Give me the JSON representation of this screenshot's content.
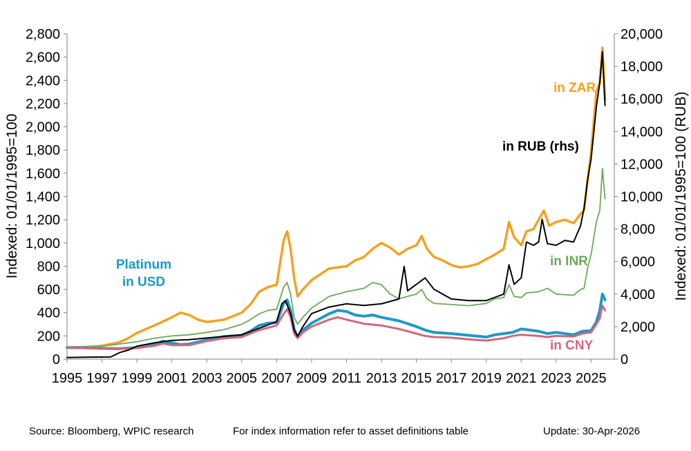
{
  "footer": {
    "source": "Source: Bloomberg, WPIC research",
    "note": "For index information refer to asset definitions table",
    "update": "Update: 30-Apr-2026"
  },
  "chart_data": {
    "type": "line",
    "ylabel": "Indexed:  01/01/1995=100",
    "y2label": "Indexed:  01/01/1995=100 (RUB)",
    "ylim": [
      0,
      2800
    ],
    "y2lim": [
      0,
      20000
    ],
    "yticks": [
      0,
      200,
      400,
      600,
      800,
      1000,
      1200,
      1400,
      1600,
      1800,
      2000,
      2200,
      2400,
      2600,
      2800
    ],
    "y2ticks": [
      0,
      2000,
      4000,
      6000,
      8000,
      10000,
      12000,
      14000,
      16000,
      18000,
      20000
    ],
    "xlim": [
      1995,
      2026.33
    ],
    "xticks": [
      "1995",
      "1997",
      "1999",
      "2001",
      "2003",
      "2005",
      "2007",
      "2009",
      "2011",
      "2013",
      "2015",
      "2017",
      "2019",
      "2021",
      "2023",
      "2025"
    ],
    "grid": false,
    "series": [
      {
        "name": "in ZAR",
        "axis": "left",
        "color": "#F79F1E",
        "points": [
          [
            1995,
            100
          ],
          [
            1996,
            105
          ],
          [
            1997,
            115
          ],
          [
            1998,
            145
          ],
          [
            1998.5,
            180
          ],
          [
            1999,
            225
          ],
          [
            2000,
            290
          ],
          [
            2001,
            360
          ],
          [
            2001.5,
            400
          ],
          [
            2002,
            380
          ],
          [
            2002.5,
            340
          ],
          [
            2003,
            320
          ],
          [
            2004,
            340
          ],
          [
            2005,
            400
          ],
          [
            2005.5,
            470
          ],
          [
            2006,
            580
          ],
          [
            2006.5,
            620
          ],
          [
            2007,
            640
          ],
          [
            2007.4,
            1020
          ],
          [
            2007.6,
            1100
          ],
          [
            2007.8,
            950
          ],
          [
            2008,
            700
          ],
          [
            2008.2,
            540
          ],
          [
            2008.5,
            600
          ],
          [
            2009,
            680
          ],
          [
            2010,
            780
          ],
          [
            2011,
            800
          ],
          [
            2011.5,
            850
          ],
          [
            2012,
            880
          ],
          [
            2012.5,
            950
          ],
          [
            2013,
            1000
          ],
          [
            2013.5,
            960
          ],
          [
            2014,
            900
          ],
          [
            2014.5,
            950
          ],
          [
            2015,
            980
          ],
          [
            2015.3,
            1060
          ],
          [
            2015.6,
            950
          ],
          [
            2016,
            880
          ],
          [
            2016.5,
            850
          ],
          [
            2017,
            810
          ],
          [
            2017.5,
            790
          ],
          [
            2018,
            800
          ],
          [
            2018.5,
            820
          ],
          [
            2019,
            860
          ],
          [
            2019.5,
            900
          ],
          [
            2020,
            950
          ],
          [
            2020.3,
            1180
          ],
          [
            2020.6,
            1050
          ],
          [
            2021,
            980
          ],
          [
            2021.3,
            1100
          ],
          [
            2021.7,
            1120
          ],
          [
            2022,
            1200
          ],
          [
            2022.3,
            1280
          ],
          [
            2022.6,
            1150
          ],
          [
            2023,
            1180
          ],
          [
            2023.5,
            1200
          ],
          [
            2024,
            1170
          ],
          [
            2024.4,
            1250
          ],
          [
            2024.6,
            1280
          ],
          [
            2024.8,
            1540
          ],
          [
            2025,
            1780
          ],
          [
            2025.3,
            2300
          ],
          [
            2025.5,
            2380
          ],
          [
            2025.65,
            2680
          ],
          [
            2025.8,
            2230
          ]
        ]
      },
      {
        "name": "in INR",
        "axis": "left",
        "color": "#6AAA57",
        "points": [
          [
            1995,
            95
          ],
          [
            1996,
            95
          ],
          [
            1997,
            110
          ],
          [
            1998,
            130
          ],
          [
            1999,
            150
          ],
          [
            2000,
            180
          ],
          [
            2001,
            200
          ],
          [
            2002,
            210
          ],
          [
            2003,
            230
          ],
          [
            2004,
            255
          ],
          [
            2005,
            300
          ],
          [
            2005.5,
            340
          ],
          [
            2006,
            390
          ],
          [
            2006.5,
            420
          ],
          [
            2007,
            430
          ],
          [
            2007.4,
            620
          ],
          [
            2007.6,
            660
          ],
          [
            2007.8,
            560
          ],
          [
            2008,
            360
          ],
          [
            2008.2,
            300
          ],
          [
            2008.5,
            360
          ],
          [
            2009,
            440
          ],
          [
            2010,
            540
          ],
          [
            2011,
            580
          ],
          [
            2012,
            610
          ],
          [
            2012.5,
            660
          ],
          [
            2013,
            640
          ],
          [
            2013.5,
            560
          ],
          [
            2014,
            520
          ],
          [
            2015,
            560
          ],
          [
            2015.3,
            600
          ],
          [
            2015.6,
            520
          ],
          [
            2016,
            480
          ],
          [
            2017,
            470
          ],
          [
            2018,
            460
          ],
          [
            2019,
            480
          ],
          [
            2019.5,
            520
          ],
          [
            2020,
            530
          ],
          [
            2020.3,
            640
          ],
          [
            2020.6,
            540
          ],
          [
            2021,
            530
          ],
          [
            2021.3,
            570
          ],
          [
            2022,
            580
          ],
          [
            2022.5,
            610
          ],
          [
            2023,
            560
          ],
          [
            2024,
            550
          ],
          [
            2024.4,
            600
          ],
          [
            2024.6,
            610
          ],
          [
            2024.8,
            780
          ],
          [
            2025,
            900
          ],
          [
            2025.3,
            1180
          ],
          [
            2025.5,
            1280
          ],
          [
            2025.65,
            1640
          ],
          [
            2025.8,
            1380
          ]
        ]
      },
      {
        "name": "Platinum in USD",
        "axis": "left",
        "color": "#1B9AC6",
        "points": [
          [
            1995,
            100
          ],
          [
            1996,
            98
          ],
          [
            1997,
            92
          ],
          [
            1998,
            90
          ],
          [
            1999,
            100
          ],
          [
            2000,
            125
          ],
          [
            2000.5,
            155
          ],
          [
            2001,
            140
          ],
          [
            2001.5,
            125
          ],
          [
            2002,
            130
          ],
          [
            2003,
            165
          ],
          [
            2004,
            195
          ],
          [
            2005,
            205
          ],
          [
            2005.5,
            240
          ],
          [
            2006,
            290
          ],
          [
            2006.5,
            310
          ],
          [
            2007,
            315
          ],
          [
            2007.4,
            480
          ],
          [
            2007.6,
            510
          ],
          [
            2007.8,
            420
          ],
          [
            2008,
            260
          ],
          [
            2008.2,
            190
          ],
          [
            2008.5,
            250
          ],
          [
            2009,
            310
          ],
          [
            2010,
            390
          ],
          [
            2010.5,
            420
          ],
          [
            2011,
            410
          ],
          [
            2011.5,
            380
          ],
          [
            2012,
            370
          ],
          [
            2012.5,
            380
          ],
          [
            2013,
            360
          ],
          [
            2014,
            330
          ],
          [
            2015,
            280
          ],
          [
            2015.5,
            250
          ],
          [
            2016,
            230
          ],
          [
            2017,
            220
          ],
          [
            2018,
            205
          ],
          [
            2019,
            190
          ],
          [
            2019.5,
            210
          ],
          [
            2020,
            220
          ],
          [
            2020.5,
            230
          ],
          [
            2021,
            260
          ],
          [
            2022,
            240
          ],
          [
            2022.5,
            220
          ],
          [
            2023,
            230
          ],
          [
            2024,
            210
          ],
          [
            2024.5,
            240
          ],
          [
            2025,
            245
          ],
          [
            2025.3,
            320
          ],
          [
            2025.5,
            420
          ],
          [
            2025.65,
            560
          ],
          [
            2025.8,
            510
          ]
        ]
      },
      {
        "name": "in CNY",
        "axis": "left",
        "color": "#D5657A",
        "points": [
          [
            1995,
            100
          ],
          [
            1996,
            95
          ],
          [
            1997,
            90
          ],
          [
            1998,
            88
          ],
          [
            1999,
            95
          ],
          [
            2000,
            115
          ],
          [
            2000.5,
            135
          ],
          [
            2001,
            120
          ],
          [
            2002,
            120
          ],
          [
            2003,
            155
          ],
          [
            2004,
            180
          ],
          [
            2005,
            190
          ],
          [
            2006,
            250
          ],
          [
            2007,
            290
          ],
          [
            2007.4,
            390
          ],
          [
            2007.6,
            430
          ],
          [
            2007.8,
            360
          ],
          [
            2008,
            220
          ],
          [
            2008.2,
            180
          ],
          [
            2008.5,
            230
          ],
          [
            2009,
            280
          ],
          [
            2010,
            340
          ],
          [
            2010.5,
            360
          ],
          [
            2011,
            340
          ],
          [
            2012,
            305
          ],
          [
            2013,
            290
          ],
          [
            2014,
            260
          ],
          [
            2015,
            220
          ],
          [
            2015.5,
            200
          ],
          [
            2016,
            190
          ],
          [
            2017,
            185
          ],
          [
            2018,
            170
          ],
          [
            2019,
            160
          ],
          [
            2020,
            180
          ],
          [
            2020.5,
            200
          ],
          [
            2021,
            210
          ],
          [
            2022,
            200
          ],
          [
            2022.5,
            190
          ],
          [
            2023,
            200
          ],
          [
            2024,
            195
          ],
          [
            2024.5,
            220
          ],
          [
            2025,
            230
          ],
          [
            2025.3,
            300
          ],
          [
            2025.5,
            350
          ],
          [
            2025.65,
            460
          ],
          [
            2025.8,
            420
          ]
        ]
      },
      {
        "name": "in RUB (rhs)",
        "axis": "right",
        "color": "#000000",
        "points": [
          [
            1995,
            100
          ],
          [
            1996,
            120
          ],
          [
            1997.5,
            130
          ],
          [
            1998,
            400
          ],
          [
            1998.5,
            550
          ],
          [
            1999,
            800
          ],
          [
            2000,
            1000
          ],
          [
            2001,
            1150
          ],
          [
            2002,
            1200
          ],
          [
            2003,
            1300
          ],
          [
            2004,
            1400
          ],
          [
            2005,
            1500
          ],
          [
            2006,
            1900
          ],
          [
            2006.5,
            2100
          ],
          [
            2007,
            2300
          ],
          [
            2007.3,
            3400
          ],
          [
            2007.5,
            3600
          ],
          [
            2007.8,
            2800
          ],
          [
            2008,
            1800
          ],
          [
            2008.2,
            1400
          ],
          [
            2008.5,
            2000
          ],
          [
            2009,
            2800
          ],
          [
            2010,
            3200
          ],
          [
            2011,
            3400
          ],
          [
            2012,
            3300
          ],
          [
            2013,
            3400
          ],
          [
            2014,
            3700
          ],
          [
            2014.3,
            5700
          ],
          [
            2014.5,
            4200
          ],
          [
            2015,
            4600
          ],
          [
            2015.5,
            5000
          ],
          [
            2016,
            4300
          ],
          [
            2017,
            3700
          ],
          [
            2018,
            3600
          ],
          [
            2019,
            3600
          ],
          [
            2019.5,
            3800
          ],
          [
            2020,
            4000
          ],
          [
            2020.3,
            5800
          ],
          [
            2020.6,
            4600
          ],
          [
            2021,
            5000
          ],
          [
            2021.3,
            7200
          ],
          [
            2021.7,
            7000
          ],
          [
            2022,
            7200
          ],
          [
            2022.2,
            8600
          ],
          [
            2022.5,
            7100
          ],
          [
            2023,
            7000
          ],
          [
            2023.5,
            7300
          ],
          [
            2024,
            7200
          ],
          [
            2024.4,
            8200
          ],
          [
            2024.6,
            9300
          ],
          [
            2024.8,
            11000
          ],
          [
            2025,
            12300
          ],
          [
            2025.3,
            15500
          ],
          [
            2025.5,
            17000
          ],
          [
            2025.65,
            18900
          ],
          [
            2025.8,
            15600
          ]
        ]
      }
    ],
    "annotations": [
      {
        "text": "in ZAR",
        "color": "#F79F1E"
      },
      {
        "text": "in RUB (rhs)",
        "color": "#000000"
      },
      {
        "text": "in INR",
        "color": "#6AAA57"
      },
      {
        "text": "Platinum",
        "color": "#1B9AC6"
      },
      {
        "text": "in USD",
        "color": "#1B9AC6"
      },
      {
        "text": "in CNY",
        "color": "#D5657A"
      }
    ]
  }
}
